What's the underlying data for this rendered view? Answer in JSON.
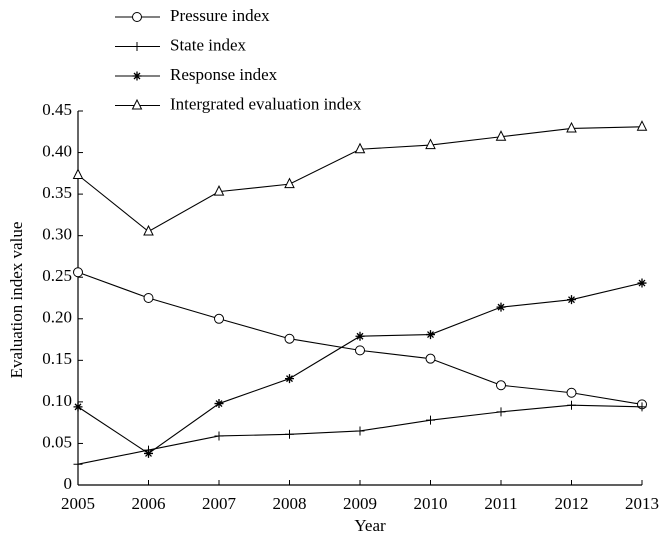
{
  "chart_data": {
    "type": "line",
    "xlabel": "Year",
    "ylabel": "Evaluation index value",
    "x": [
      2005,
      2006,
      2007,
      2008,
      2009,
      2010,
      2011,
      2012,
      2013
    ],
    "xlim": [
      2005,
      2013
    ],
    "xticks": [
      2005,
      2006,
      2007,
      2008,
      2009,
      2010,
      2011,
      2012,
      2013
    ],
    "ylim": [
      0,
      0.45
    ],
    "yticks": [
      0,
      0.05,
      {
        "value": 0.1,
        "label": "0.10"
      },
      0.15,
      {
        "value": 0.2,
        "label": "0.20"
      },
      0.25,
      {
        "value": 0.3,
        "label": "0.30"
      },
      0.35,
      {
        "value": 0.4,
        "label": "0.40"
      },
      0.45
    ],
    "grid": false,
    "legend": "top",
    "series": [
      {
        "name": "Pressure index",
        "color": "#000000",
        "marker": "circle",
        "values": [
          0.256,
          0.225,
          0.2,
          0.176,
          0.162,
          0.152,
          0.12,
          0.111,
          0.097
        ]
      },
      {
        "name": "State index",
        "color": "#000000",
        "marker": "plus",
        "values": [
          0.025,
          0.042,
          0.059,
          0.061,
          0.065,
          0.078,
          0.088,
          0.096,
          0.094
        ]
      },
      {
        "name": "Response index",
        "color": "#000000",
        "marker": "star",
        "values": [
          0.094,
          0.038,
          0.098,
          0.128,
          0.179,
          0.181,
          0.214,
          0.223,
          0.243
        ]
      },
      {
        "name": "Intergrated evaluation index",
        "color": "#000000",
        "marker": "triangle",
        "values": [
          0.373,
          0.305,
          0.353,
          0.362,
          0.404,
          0.409,
          0.419,
          0.429,
          0.431
        ]
      }
    ]
  }
}
